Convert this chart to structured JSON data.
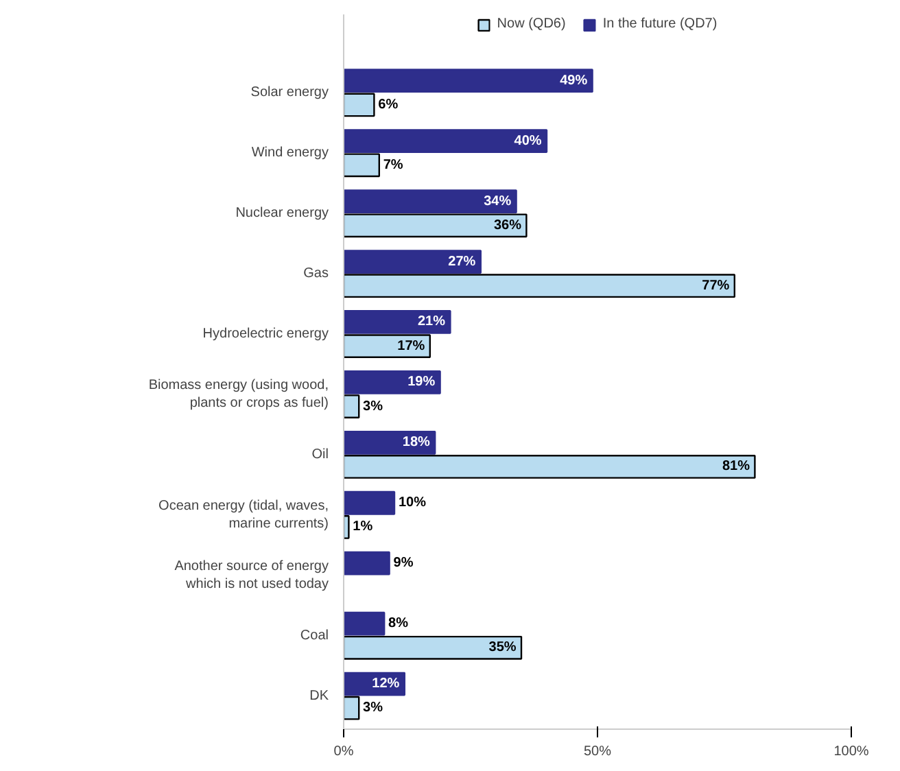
{
  "chart_data": {
    "type": "bar",
    "orientation": "horizontal",
    "categories": [
      "Solar energy",
      "Wind energy",
      "Nuclear energy",
      "Gas",
      "Hydroelectric energy",
      "Biomass energy (using wood,\nplants or crops as fuel)",
      "Oil",
      "Ocean energy (tidal, waves,\nmarine currents)",
      "Another source of energy\nwhich is not used today",
      "Coal",
      "DK"
    ],
    "series": [
      {
        "name": "In the future (QD7)",
        "color": "#2e2e8c",
        "values": [
          49,
          40,
          34,
          27,
          21,
          19,
          18,
          10,
          9,
          8,
          12
        ],
        "value_labels": [
          "49%",
          "40%",
          "34%",
          "27%",
          "21%",
          "19%",
          "18%",
          "10%",
          "9%",
          "8%",
          "12%"
        ]
      },
      {
        "name": "Now (QD6)",
        "color": "#b8dcf0",
        "values": [
          6,
          7,
          36,
          77,
          17,
          3,
          81,
          1,
          null,
          35,
          3
        ],
        "value_labels": [
          "6%",
          "7%",
          "36%",
          "77%",
          "17%",
          "3%",
          "81%",
          "1%",
          null,
          "35%",
          "3%"
        ]
      }
    ],
    "xlim": [
      0,
      100
    ],
    "xticks": [
      {
        "value": 0,
        "label": "0%"
      },
      {
        "value": 50,
        "label": "50%"
      },
      {
        "value": 100,
        "label": "100%"
      }
    ],
    "grid": false,
    "legend": "top"
  }
}
